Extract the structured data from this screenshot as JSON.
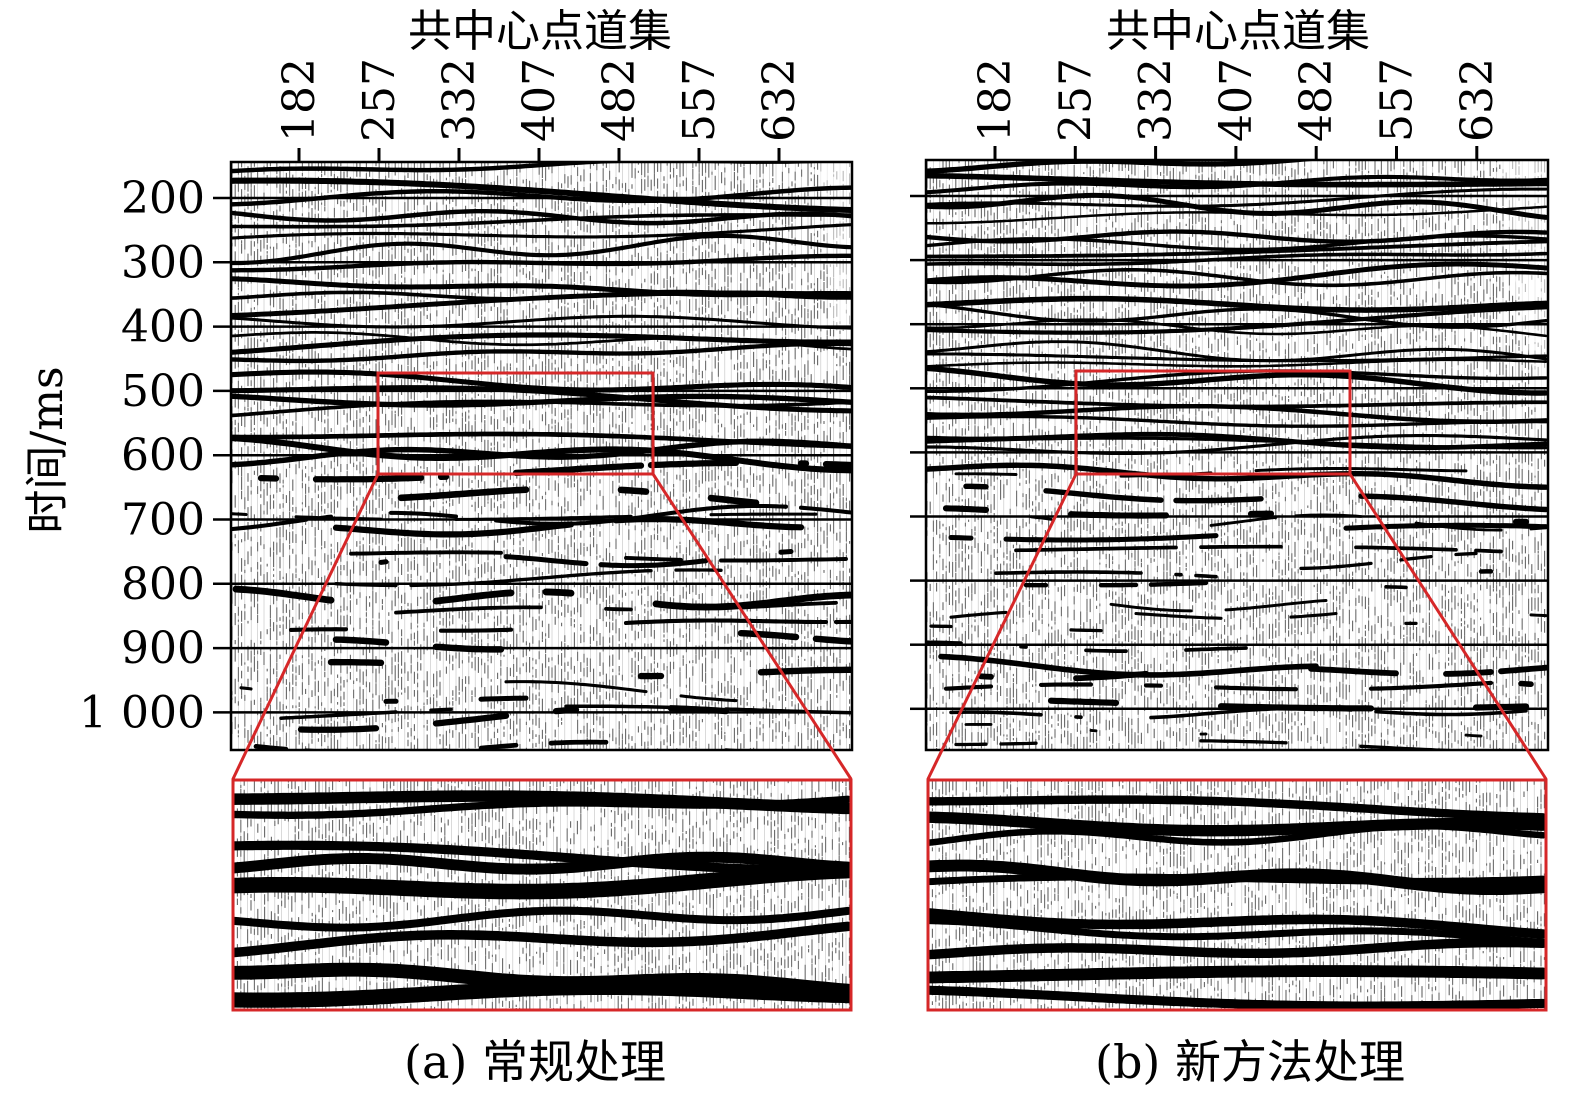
{
  "panels": [
    {
      "id": "a",
      "x_axis_title": "共中心点道集",
      "x_ticks": [
        "182",
        "257",
        "332",
        "407",
        "482",
        "557",
        "632"
      ],
      "y_axis_title": "时间/ms",
      "y_ticks": [
        "200",
        "300",
        "400",
        "500",
        "600",
        "700",
        "800",
        "900",
        "1 000"
      ],
      "caption": "(a) 常规处理"
    },
    {
      "id": "b",
      "x_axis_title": "共中心点道集",
      "x_ticks": [
        "182",
        "257",
        "332",
        "407",
        "482",
        "557",
        "632"
      ],
      "caption": "(b) 新方法处理"
    }
  ],
  "colors": {
    "highlight": "#d62728",
    "wiggle": "#000000",
    "background": "#ffffff"
  }
}
